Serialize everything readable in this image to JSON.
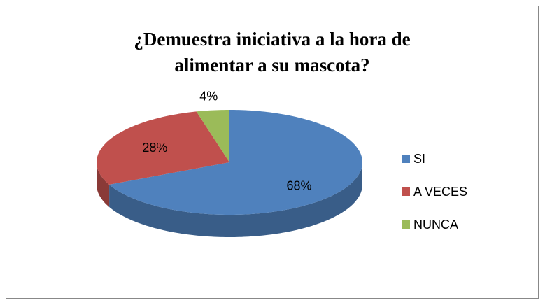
{
  "chart_data": {
    "type": "pie",
    "title": "¿Demuestra iniciativa a la hora de alimentar a su mascota?",
    "categories": [
      "SI",
      "A VECES",
      "NUNCA"
    ],
    "values": [
      68,
      28,
      4
    ],
    "value_labels": [
      "68%",
      "28%",
      "4%"
    ],
    "colors": [
      "#4f81bd",
      "#c0504d",
      "#9bbb59"
    ],
    "legend": "right"
  }
}
